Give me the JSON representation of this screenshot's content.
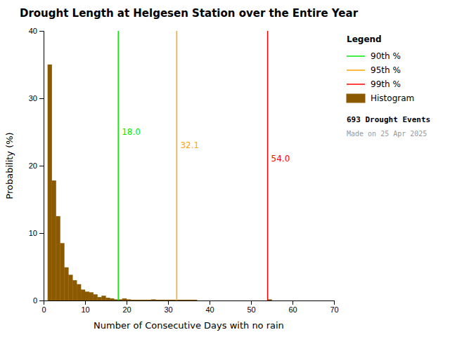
{
  "chart_data": {
    "type": "histogram",
    "title": "Drought Length at Helgesen Station over the Entire Year",
    "x_label": "Number of Consecutive Days with no rain",
    "y_label": "Probability (%)",
    "name": "Histogram",
    "color": "#8B5A00",
    "bins": [
      1,
      2,
      3,
      4,
      5,
      6,
      7,
      8,
      9,
      10,
      11,
      12,
      13,
      14,
      15,
      16,
      17,
      18,
      19,
      20,
      21,
      22,
      23,
      24,
      25,
      26,
      27,
      28,
      29,
      30,
      31,
      32,
      33,
      34,
      35,
      36,
      37,
      38,
      39,
      40,
      41,
      42,
      43,
      44,
      45,
      46,
      47,
      48,
      49,
      50,
      51,
      52,
      53,
      54,
      55,
      56,
      57,
      58,
      59,
      60,
      61
    ],
    "values": [
      35.0,
      17.8,
      12.5,
      8.5,
      4.9,
      3.8,
      3.0,
      2.4,
      1.6,
      1.3,
      1.2,
      0.9,
      0.5,
      0.7,
      0.4,
      0.3,
      0.15,
      0.15,
      0.3,
      0.15,
      0.1,
      0.1,
      0.1,
      0.1,
      0.1,
      0.15,
      0.1,
      0.1,
      0.1,
      0.1,
      0.1,
      0.1,
      0.1,
      0.1,
      0.1,
      0.1,
      0.0,
      0.0,
      0.0,
      0.0,
      0.0,
      0.0,
      0.0,
      0.0,
      0.0,
      0.0,
      0.0,
      0.0,
      0.0,
      0.0,
      0.0,
      0.0,
      0.0,
      0.15,
      0.0,
      0.0,
      0.0,
      0.0,
      0.0,
      0.0
    ],
    "vlines": [
      {
        "name": "90th %",
        "x": 18.0,
        "label": "18.0",
        "color": "#00EE00"
      },
      {
        "name": "95th %",
        "x": 32.1,
        "label": "32.1",
        "color": "#FFA500"
      },
      {
        "name": "99th %",
        "x": 54.0,
        "label": "54.0",
        "color": "#FF0000"
      }
    ],
    "legend": "upper right",
    "legend_title": "Legend",
    "annotations": [
      "693 Drought Events",
      "Made on 25 Apr 2025"
    ],
    "xlim": [
      0,
      70
    ],
    "xticks": [
      0,
      10,
      20,
      30,
      40,
      50,
      60,
      70
    ],
    "ylim": [
      0,
      40
    ],
    "yticks": [
      0,
      10,
      20,
      30,
      40
    ],
    "grid": false
  }
}
